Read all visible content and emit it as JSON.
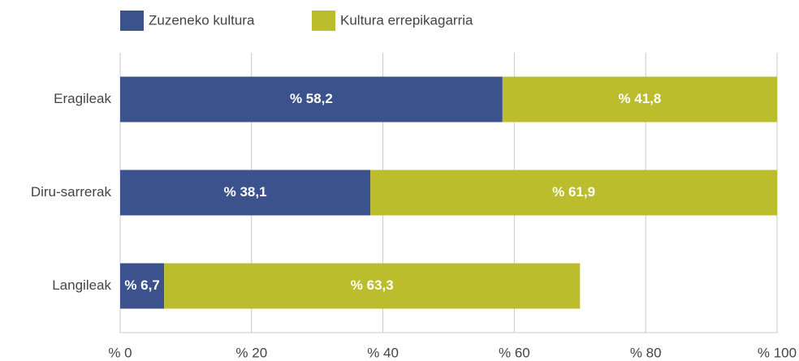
{
  "chart_data": {
    "type": "stacked_bar_horizontal",
    "categories": [
      "Eragileak",
      "Diru-sarrerak",
      "Langileak"
    ],
    "series": [
      {
        "name": "Zuzeneko kultura",
        "color": "#3b528c",
        "values": [
          58.2,
          38.1,
          6.7
        ],
        "value_labels": [
          "% 58,2",
          "% 38,1",
          "% 6,7"
        ]
      },
      {
        "name": "Kultura errepikagarria",
        "color": "#bcbd2c",
        "values": [
          41.8,
          61.9,
          63.3
        ],
        "value_labels": [
          "% 41,8",
          "% 61,9",
          "% 63,3"
        ]
      }
    ],
    "xlim": [
      0,
      100
    ],
    "xticks": [
      {
        "value": 0,
        "label": "% 0"
      },
      {
        "value": 20,
        "label": "% 20"
      },
      {
        "value": 40,
        "label": "% 40"
      },
      {
        "value": 60,
        "label": "% 60"
      },
      {
        "value": 80,
        "label": "% 80"
      },
      {
        "value": 100,
        "label": "% 100"
      }
    ],
    "grid": true,
    "legend": "top"
  }
}
